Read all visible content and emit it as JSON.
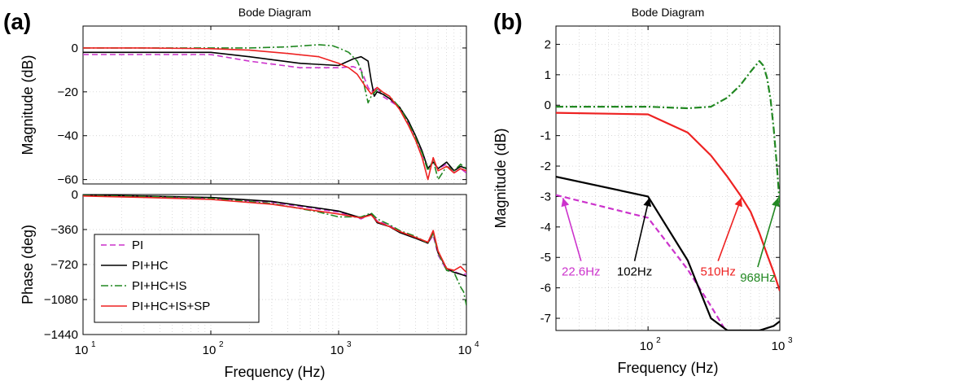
{
  "figure": {
    "panel_a_label": "(a)",
    "panel_b_label": "(b)"
  },
  "chart_data": [
    {
      "id": "a-mag",
      "type": "line",
      "title": "Bode Diagram",
      "xlabel": "",
      "ylabel": "Magnitude (dB)",
      "xscale": "log",
      "xlim": [
        10,
        10000
      ],
      "ylim": [
        -62,
        10
      ],
      "yticks": [
        0,
        -20,
        -40,
        -60
      ],
      "ytick_labels": [
        "0",
        "−20",
        "−40",
        "−60"
      ],
      "xticks": [
        10,
        100,
        1000,
        10000
      ],
      "grid": true,
      "series": [
        {
          "name": "PI",
          "color": "#cc33cc",
          "dash": "dashed",
          "x": [
            10,
            30,
            100,
            200,
            500,
            1000,
            1300,
            1500,
            1600,
            1700,
            1800,
            2000,
            2200,
            2500,
            3000,
            3500,
            4000,
            4500,
            5000,
            5500,
            6000,
            7000,
            8000,
            9000,
            10000
          ],
          "y": [
            -3,
            -3,
            -3,
            -6,
            -9,
            -9,
            -8.5,
            -10,
            -14,
            -18,
            -20,
            -18,
            -22,
            -24,
            -27,
            -34,
            -40,
            -48,
            -55,
            -52,
            -55,
            -53,
            -57,
            -55,
            -57
          ]
        },
        {
          "name": "PI+HC",
          "color": "#000000",
          "dash": "solid",
          "x": [
            10,
            30,
            100,
            200,
            500,
            1000,
            1300,
            1500,
            1700,
            1800,
            1900,
            2000,
            2200,
            2500,
            3000,
            3500,
            4000,
            4500,
            5000,
            5500,
            6000,
            7000,
            8000,
            9000,
            10000
          ],
          "y": [
            -2,
            -2,
            -2,
            -4,
            -7,
            -8,
            -5,
            -4,
            -6,
            -15,
            -22,
            -20,
            -21,
            -23,
            -27,
            -33,
            -40,
            -47,
            -55,
            -52,
            -55,
            -52,
            -56,
            -54,
            -55
          ]
        },
        {
          "name": "PI+HC+IS",
          "color": "#228822",
          "dash": "dashdot",
          "x": [
            10,
            30,
            100,
            200,
            400,
            700,
            900,
            1000,
            1200,
            1400,
            1500,
            1600,
            1700,
            1800,
            2000,
            2500,
            3000,
            3500,
            4000,
            4500,
            5000,
            5500,
            6000,
            7000,
            8000,
            9000,
            10000
          ],
          "y": [
            0,
            0,
            0,
            0,
            0.5,
            1.5,
            1,
            0,
            -2,
            -6,
            -10,
            -18,
            -25,
            -22,
            -19,
            -22,
            -27,
            -34,
            -41,
            -48,
            -56,
            -51,
            -60,
            -54,
            -56,
            -53,
            -55
          ]
        },
        {
          "name": "PI+HC+IS+SP",
          "color": "#ee2222",
          "dash": "solid",
          "x": [
            10,
            30,
            100,
            200,
            400,
            700,
            1000,
            1200,
            1400,
            1600,
            1800,
            2000,
            2200,
            2500,
            3000,
            3500,
            4000,
            4500,
            5000,
            5500,
            6000,
            7000,
            8000,
            9000,
            10000
          ],
          "y": [
            0,
            0,
            -0.3,
            -1,
            -2.5,
            -4,
            -7,
            -9,
            -12,
            -17,
            -21,
            -18,
            -20,
            -22,
            -28,
            -35,
            -42,
            -50,
            -60,
            -50,
            -56,
            -54,
            -57,
            -55,
            -56
          ]
        }
      ]
    },
    {
      "id": "a-phase",
      "type": "line",
      "title": "",
      "xlabel": "Frequency  (Hz)",
      "ylabel": "Phase (deg)",
      "xscale": "log",
      "xlim": [
        10,
        10000
      ],
      "ylim": [
        -1440,
        0
      ],
      "yticks": [
        0,
        -360,
        -720,
        -1080,
        -1440
      ],
      "ytick_labels": [
        "0",
        "−360",
        "−720",
        "−1080",
        "−1440"
      ],
      "xticks": [
        10,
        100,
        1000,
        10000
      ],
      "xtick_labels": [
        "10",
        "10",
        "10",
        "10"
      ],
      "xtick_exponents": [
        "1",
        "2",
        "3",
        "4"
      ],
      "grid": true,
      "series": [
        {
          "name": "PI",
          "color": "#cc33cc",
          "dash": "dashed",
          "x": [
            10,
            30,
            100,
            300,
            1000,
            1500,
            1800,
            2000,
            2500,
            3000,
            4000,
            5000,
            5500,
            6000,
            7000,
            8000,
            9000,
            10000
          ],
          "y": [
            -10,
            -20,
            -40,
            -80,
            -180,
            -250,
            -200,
            -270,
            -320,
            -380,
            -440,
            -500,
            -420,
            -620,
            -780,
            -790,
            -820,
            -820
          ]
        },
        {
          "name": "PI+HC",
          "color": "#000000",
          "dash": "solid",
          "x": [
            10,
            30,
            100,
            300,
            1000,
            1500,
            1800,
            2000,
            2500,
            3000,
            4000,
            5000,
            5500,
            6000,
            7000,
            8000,
            9000,
            10000
          ],
          "y": [
            -5,
            -15,
            -30,
            -70,
            -170,
            -240,
            -200,
            -290,
            -330,
            -390,
            -450,
            -500,
            -380,
            -600,
            -760,
            -800,
            -820,
            -840
          ]
        },
        {
          "name": "PI+HC+IS",
          "color": "#228822",
          "dash": "dashdot",
          "x": [
            10,
            30,
            100,
            300,
            700,
            1000,
            1500,
            1800,
            2000,
            2500,
            3000,
            4000,
            5000,
            5500,
            6000,
            7000,
            8000,
            9000,
            9500,
            10000
          ],
          "y": [
            -10,
            -20,
            -40,
            -90,
            -180,
            -230,
            -230,
            -190,
            -250,
            -310,
            -370,
            -430,
            -500,
            -400,
            -600,
            -780,
            -800,
            -950,
            -1000,
            -1140
          ]
        },
        {
          "name": "PI+HC+IS+SP",
          "color": "#ee2222",
          "dash": "solid",
          "x": [
            10,
            30,
            100,
            300,
            1000,
            1500,
            1800,
            2000,
            2500,
            3000,
            4000,
            5000,
            5500,
            6000,
            7000,
            8000,
            9000,
            10000
          ],
          "y": [
            -15,
            -30,
            -50,
            -100,
            -200,
            -240,
            -210,
            -280,
            -330,
            -380,
            -440,
            -490,
            -370,
            -580,
            -760,
            -780,
            -740,
            -800
          ]
        }
      ],
      "legend": {
        "placement": "bottom-left",
        "entries": [
          "PI",
          "PI+HC",
          "PI+HC+IS",
          "PI+HC+IS+SP"
        ]
      }
    },
    {
      "id": "b",
      "type": "line",
      "title": "Bode Diagram",
      "xlabel": "Frequency  (Hz)",
      "ylabel": "Magnitude (dB)",
      "xscale": "log",
      "xlim": [
        20,
        1000
      ],
      "ylim": [
        -7.4,
        2.6
      ],
      "yticks": [
        2,
        1,
        0,
        -1,
        -2,
        -3,
        -4,
        -5,
        -6,
        -7
      ],
      "ytick_labels": [
        "2",
        "1",
        "0",
        "-1",
        "-2",
        "-3",
        "-4",
        "-5",
        "-6",
        "-7"
      ],
      "xticks": [
        100,
        1000
      ],
      "xtick_labels": [
        "10",
        "10"
      ],
      "xtick_exponents": [
        "2",
        "3"
      ],
      "grid": true,
      "series": [
        {
          "name": "PI",
          "color": "#cc33cc",
          "dash": "dashed",
          "x": [
            20,
            100,
            200,
            300,
            400,
            1000
          ],
          "y": [
            -2.95,
            -3.7,
            -5.4,
            -6.6,
            -7.5,
            -8
          ]
        },
        {
          "name": "PI+HC",
          "color": "#000000",
          "dash": "solid",
          "x": [
            20,
            100,
            200,
            300,
            400,
            700,
            900,
            1000
          ],
          "y": [
            -2.35,
            -3.0,
            -5.1,
            -7.0,
            -7.4,
            -7.4,
            -7.25,
            -7.1
          ]
        },
        {
          "name": "PI+HC+IS",
          "color": "#228822",
          "dash": "dashdot",
          "x": [
            20,
            100,
            200,
            300,
            400,
            500,
            600,
            700,
            750,
            800,
            850,
            900,
            950,
            1000
          ],
          "y": [
            -0.05,
            -0.05,
            -0.1,
            -0.05,
            0.25,
            0.65,
            1.1,
            1.45,
            1.3,
            0.9,
            0.2,
            -0.8,
            -2.0,
            -3.3
          ]
        },
        {
          "name": "PI+HC+IS+SP",
          "color": "#ee2222",
          "dash": "solid",
          "x": [
            20,
            100,
            200,
            300,
            400,
            500,
            600,
            700,
            800,
            900,
            1000
          ],
          "y": [
            -0.25,
            -0.3,
            -0.9,
            -1.65,
            -2.35,
            -2.95,
            -3.5,
            -4.2,
            -4.9,
            -5.5,
            -6.1
          ]
        }
      ],
      "annotations": [
        {
          "text": "22.6Hz",
          "color": "#cc33cc",
          "point": [
            22.6,
            -3.05
          ],
          "text_at": [
            31,
            -5.6
          ]
        },
        {
          "text": "102Hz",
          "color": "#000000",
          "point": [
            102,
            -3.05
          ],
          "text_at": [
            79,
            -5.6
          ]
        },
        {
          "text": "510Hz",
          "color": "#ee2222",
          "point": [
            510,
            -3.05
          ],
          "text_at": [
            340,
            -5.6
          ]
        },
        {
          "text": "968Hz",
          "color": "#228822",
          "point": [
            968,
            -3.05
          ],
          "text_at": [
            680,
            -5.8
          ]
        }
      ]
    }
  ]
}
